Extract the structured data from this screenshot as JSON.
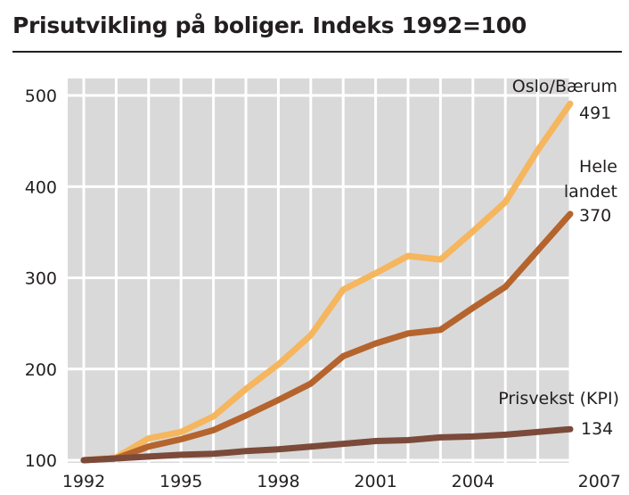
{
  "chart_data": {
    "type": "line",
    "title": "Prisutvikling på boliger. Indeks 1992=100",
    "xlabel": "",
    "ylabel": "",
    "xlim": [
      1992,
      2007
    ],
    "ylim": [
      100,
      500
    ],
    "x": [
      1992,
      1993,
      1994,
      1995,
      1996,
      1997,
      1998,
      1999,
      2000,
      2001,
      2002,
      2003,
      2004,
      2005,
      2006,
      2007
    ],
    "x_ticks": [
      "1992",
      "1995",
      "1998",
      "2001",
      "2004",
      "2007"
    ],
    "y_ticks": [
      "100",
      "200",
      "300",
      "400",
      "500"
    ],
    "grid": true,
    "legend": "none",
    "series": [
      {
        "name": "Oslo/Bærum",
        "color": "#f5b65e",
        "values": [
          100,
          103,
          124,
          131,
          148,
          178,
          205,
          237,
          287,
          305,
          324,
          320,
          351,
          383,
          440,
          491
        ],
        "end_value": "491"
      },
      {
        "name": "Hele landet",
        "name_lines": [
          "Hele",
          "landet"
        ],
        "color": "#b5642e",
        "values": [
          100,
          102,
          115,
          123,
          133,
          149,
          166,
          184,
          214,
          228,
          239,
          243,
          267,
          290,
          330,
          370
        ],
        "end_value": "370"
      },
      {
        "name": "Prisvekst (KPI)",
        "color": "#7b4a3a",
        "values": [
          100,
          102,
          104,
          106,
          107,
          110,
          112,
          115,
          118,
          121,
          122,
          125,
          126,
          128,
          131,
          134
        ],
        "end_value": "134"
      }
    ]
  }
}
